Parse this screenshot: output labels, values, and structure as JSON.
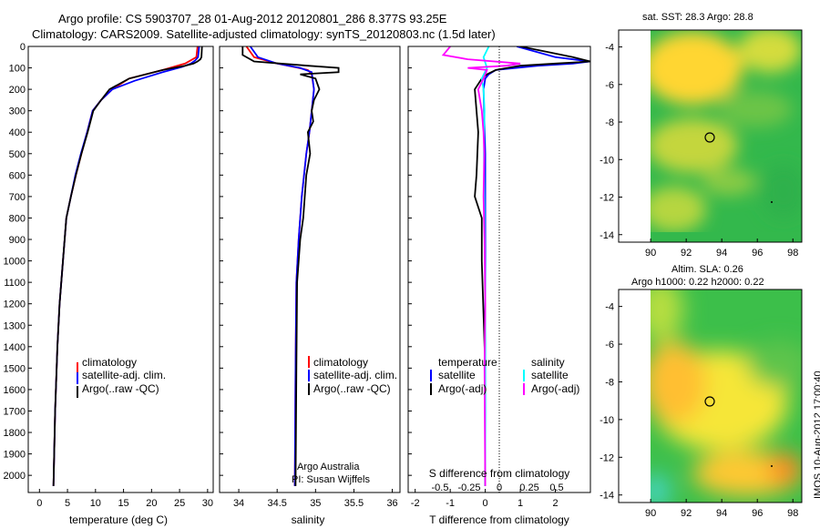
{
  "header": {
    "line1": "Argo profile: CS 5903707_28 01-Aug-2012 20120801_286 8.377S 93.25E",
    "line2": "Climatology: CARS2009. Satellite-adjusted climatology: synTS_20120803.nc (1.5d later)"
  },
  "sst_panel": {
    "title": "sat. SST: 28.3  Argo: 28.8"
  },
  "sla_panel": {
    "title1": "Altim. SLA: 0.26",
    "title2": "Argo h1000: 0.22 h2000: 0.22"
  },
  "side_stamp": "IMOS 10-Aug-2012 17:00:40",
  "credit": {
    "line1": "Argo Australia",
    "line2": "PI: Susan Wijffels"
  },
  "colors": {
    "climatology": "#ff0000",
    "satellite": "#0000ff",
    "argo": "#000000",
    "sal_satellite": "#00ffff",
    "sal_argo": "#ff00ff"
  },
  "chart_data": [
    {
      "type": "line",
      "xlabel": "temperature (deg C)",
      "xlim": [
        -2,
        31
      ],
      "ylim": [
        2080,
        0
      ],
      "xticks": [
        0,
        5,
        10,
        15,
        20,
        25,
        30
      ],
      "yticks": [
        0,
        100,
        200,
        300,
        400,
        500,
        600,
        700,
        800,
        900,
        1000,
        1100,
        1200,
        1300,
        1400,
        1500,
        1600,
        1700,
        1800,
        1900,
        2000
      ],
      "legend": [
        "climatology",
        "satellite-adj. clim.",
        "Argo(..raw -QC)"
      ],
      "series": [
        {
          "name": "climatology",
          "x": [
            28.2,
            28.0,
            26.0,
            22.0,
            16.0,
            13.0,
            11.0,
            9.5,
            8.5,
            7.5,
            6.5,
            5.6,
            4.8,
            4.2,
            3.6,
            3.2,
            2.8,
            2.5
          ],
          "y": [
            0,
            50,
            80,
            110,
            150,
            200,
            250,
            300,
            400,
            500,
            600,
            700,
            800,
            1000,
            1200,
            1400,
            1700,
            2050
          ]
        },
        {
          "name": "satellite-adj. clim.",
          "x": [
            28.5,
            28.3,
            27.8,
            27.0,
            25.5,
            22.0,
            17.0,
            13.0,
            11.0,
            9.5,
            8.5,
            7.4,
            6.4,
            5.6,
            4.8,
            4.2,
            3.6,
            3.2,
            2.8,
            2.5
          ],
          "y": [
            0,
            50,
            65,
            80,
            95,
            120,
            160,
            200,
            250,
            300,
            400,
            500,
            600,
            700,
            800,
            1000,
            1200,
            1400,
            1700,
            2050
          ]
        },
        {
          "name": "Argo(..raw -QC)",
          "x": [
            29.0,
            28.9,
            28.7,
            28.2,
            27.5,
            26.0,
            22.0,
            16.0,
            12.5,
            11.0,
            9.6,
            8.6,
            7.5,
            6.5,
            5.6,
            4.8,
            4.2,
            3.6,
            3.2,
            2.8,
            2.5
          ],
          "y": [
            0,
            50,
            60,
            70,
            80,
            90,
            110,
            150,
            200,
            250,
            300,
            400,
            500,
            600,
            700,
            800,
            1000,
            1200,
            1400,
            1700,
            2050
          ]
        }
      ]
    },
    {
      "type": "line",
      "xlabel": "salinity",
      "xlim": [
        33.75,
        36.1
      ],
      "ylim": [
        2080,
        0
      ],
      "xticks": [
        34,
        34.5,
        35,
        35.5,
        36
      ],
      "legend": [
        "climatology",
        "satellite-adj. clim.",
        "Argo(..raw -QC)"
      ],
      "series": [
        {
          "name": "climatology",
          "x": [
            34.1,
            34.2,
            34.5,
            34.78,
            34.9,
            34.95,
            34.98,
            34.95,
            34.92,
            34.88,
            34.85,
            34.82,
            34.8,
            34.78,
            34.75,
            34.74,
            34.73
          ],
          "y": [
            0,
            50,
            80,
            100,
            110,
            130,
            200,
            300,
            400,
            500,
            600,
            700,
            800,
            900,
            1100,
            1500,
            2050
          ]
        },
        {
          "name": "satellite-adj. clim.",
          "x": [
            34.15,
            34.25,
            34.5,
            34.8,
            34.95,
            34.98,
            34.95,
            34.92,
            34.88,
            34.85,
            34.82,
            34.8,
            34.78,
            34.75,
            34.74,
            34.73
          ],
          "y": [
            0,
            50,
            80,
            100,
            120,
            200,
            300,
            400,
            500,
            600,
            700,
            800,
            900,
            1100,
            1500,
            2050
          ]
        },
        {
          "name": "Argo(..raw -QC)",
          "x": [
            34.05,
            34.05,
            34.2,
            34.9,
            35.3,
            35.3,
            34.8,
            35.0,
            35.05,
            34.98,
            34.95,
            34.97,
            34.9,
            34.93,
            34.88,
            34.86,
            34.84,
            34.8,
            34.78,
            34.76,
            34.75,
            34.74
          ],
          "y": [
            0,
            40,
            70,
            90,
            100,
            120,
            130,
            150,
            200,
            250,
            300,
            350,
            400,
            500,
            600,
            700,
            800,
            900,
            1000,
            1100,
            1500,
            2050
          ]
        }
      ]
    },
    {
      "type": "line",
      "xlabel": "T difference from climatology",
      "xlabel2": "S difference from climatology",
      "xlim": [
        -2.2,
        3.0
      ],
      "ylim": [
        2080,
        0
      ],
      "xticks_T": [
        -2,
        -1,
        0,
        1,
        2
      ],
      "xticks_S": [
        "-0.5",
        "-0.25",
        "0",
        "0.25",
        "0.5"
      ],
      "legend_left": {
        "heading": "temperature",
        "items": [
          "satellite",
          "Argo(-adj)"
        ]
      },
      "legend_right": {
        "heading": "salinity",
        "items": [
          "satellite",
          "Argo(-adj)"
        ]
      },
      "series": [
        {
          "name": "satellite",
          "x": [
            0.9,
            2.0,
            3.0,
            2.5,
            1.5,
            0.3,
            0.1,
            0.0,
            -0.05,
            0.0,
            0.0,
            0.0
          ],
          "y": [
            0,
            50,
            70,
            80,
            90,
            110,
            130,
            150,
            200,
            500,
            1000,
            2050
          ]
        },
        {
          "name": "Argo(-adj)",
          "x": [
            1.0,
            2.5,
            3.0,
            2.0,
            1.0,
            0.3,
            0.05,
            -0.1,
            -0.3,
            -0.2,
            -0.25,
            -0.3,
            -0.1,
            -0.1,
            0.0,
            0.0
          ],
          "y": [
            0,
            50,
            70,
            80,
            90,
            110,
            130,
            150,
            200,
            400,
            600,
            700,
            800,
            1000,
            1500,
            2050
          ]
        },
        {
          "name": "sal_satellite",
          "x": [
            0.1,
            -0.05,
            0.05,
            -0.1,
            -0.05,
            -0.02,
            -0.04,
            -0.02,
            0.0,
            0.0
          ],
          "y": [
            0,
            50,
            100,
            150,
            200,
            300,
            500,
            800,
            1200,
            2050
          ]
        },
        {
          "name": "sal_argo",
          "x": [
            -1.0,
            -1.2,
            -0.5,
            1.0,
            0.6,
            -0.5,
            0.05,
            -0.05,
            -0.2,
            -0.1,
            -0.05,
            -0.03,
            -0.05,
            -0.02,
            0.0,
            -0.02,
            0.0
          ],
          "y": [
            0,
            40,
            60,
            80,
            90,
            100,
            110,
            150,
            200,
            300,
            400,
            500,
            700,
            900,
            1200,
            1500,
            2050
          ]
        }
      ]
    },
    {
      "type": "heatmap",
      "title": "sat. SST: 28.3  Argo: 28.8",
      "xlim": [
        88.2,
        98.5
      ],
      "ylim": [
        -14.4,
        -3.1
      ],
      "xticks": [
        90,
        92,
        94,
        96,
        98
      ],
      "yticks": [
        -4,
        -6,
        -8,
        -10,
        -12,
        -14
      ],
      "argo_marker": {
        "lon": 93.25,
        "lat": -8.38
      }
    },
    {
      "type": "heatmap",
      "title": "Altim. SLA: 0.26",
      "xlim": [
        88.2,
        98.5
      ],
      "ylim": [
        -14.4,
        -3.1
      ],
      "xticks": [
        90,
        92,
        94,
        96,
        98
      ],
      "yticks": [
        -4,
        -6,
        -8,
        -10,
        -12,
        -14
      ],
      "argo_marker": {
        "lon": 93.25,
        "lat": -8.38
      }
    }
  ]
}
